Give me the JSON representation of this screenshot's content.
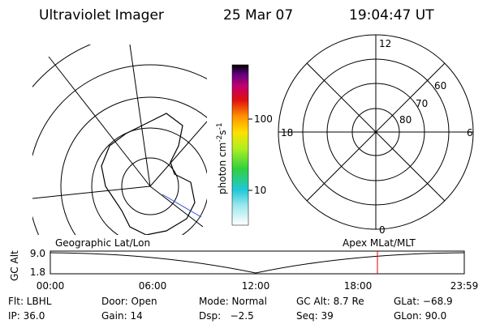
{
  "header": {
    "title": "Ultraviolet Imager",
    "date": "25 Mar 07",
    "time": "19:04:47 UT"
  },
  "colorbar": {
    "label": "photon cm",
    "exp1": "-2",
    "unit2": "s",
    "exp2": "-1",
    "ticks": [
      "100",
      "10"
    ]
  },
  "left_map": {
    "label": "Geographic Lat/Lon"
  },
  "right_map": {
    "label": "Apex MLat/MLT",
    "mlt_labels": [
      "12",
      "18",
      "6",
      "0"
    ],
    "lat_labels": [
      "60",
      "70",
      "80"
    ]
  },
  "alt_plot": {
    "ylabel": "GC Alt",
    "yticks": [
      "9.0",
      "1.8"
    ],
    "xticks": [
      "00:00",
      "06:00",
      "12:00",
      "18:00",
      "23:59"
    ]
  },
  "footer": {
    "rows": [
      [
        "Flt: LBHL",
        "Door: Open",
        "Mode: Normal",
        "GC Alt: 8.7 Re",
        "GLat: −68.9"
      ],
      [
        "IP: 36.0",
        "Gain: 14",
        "Dsp:   −2.5",
        "Seq: 39",
        "GLon: 90.0"
      ]
    ]
  }
}
